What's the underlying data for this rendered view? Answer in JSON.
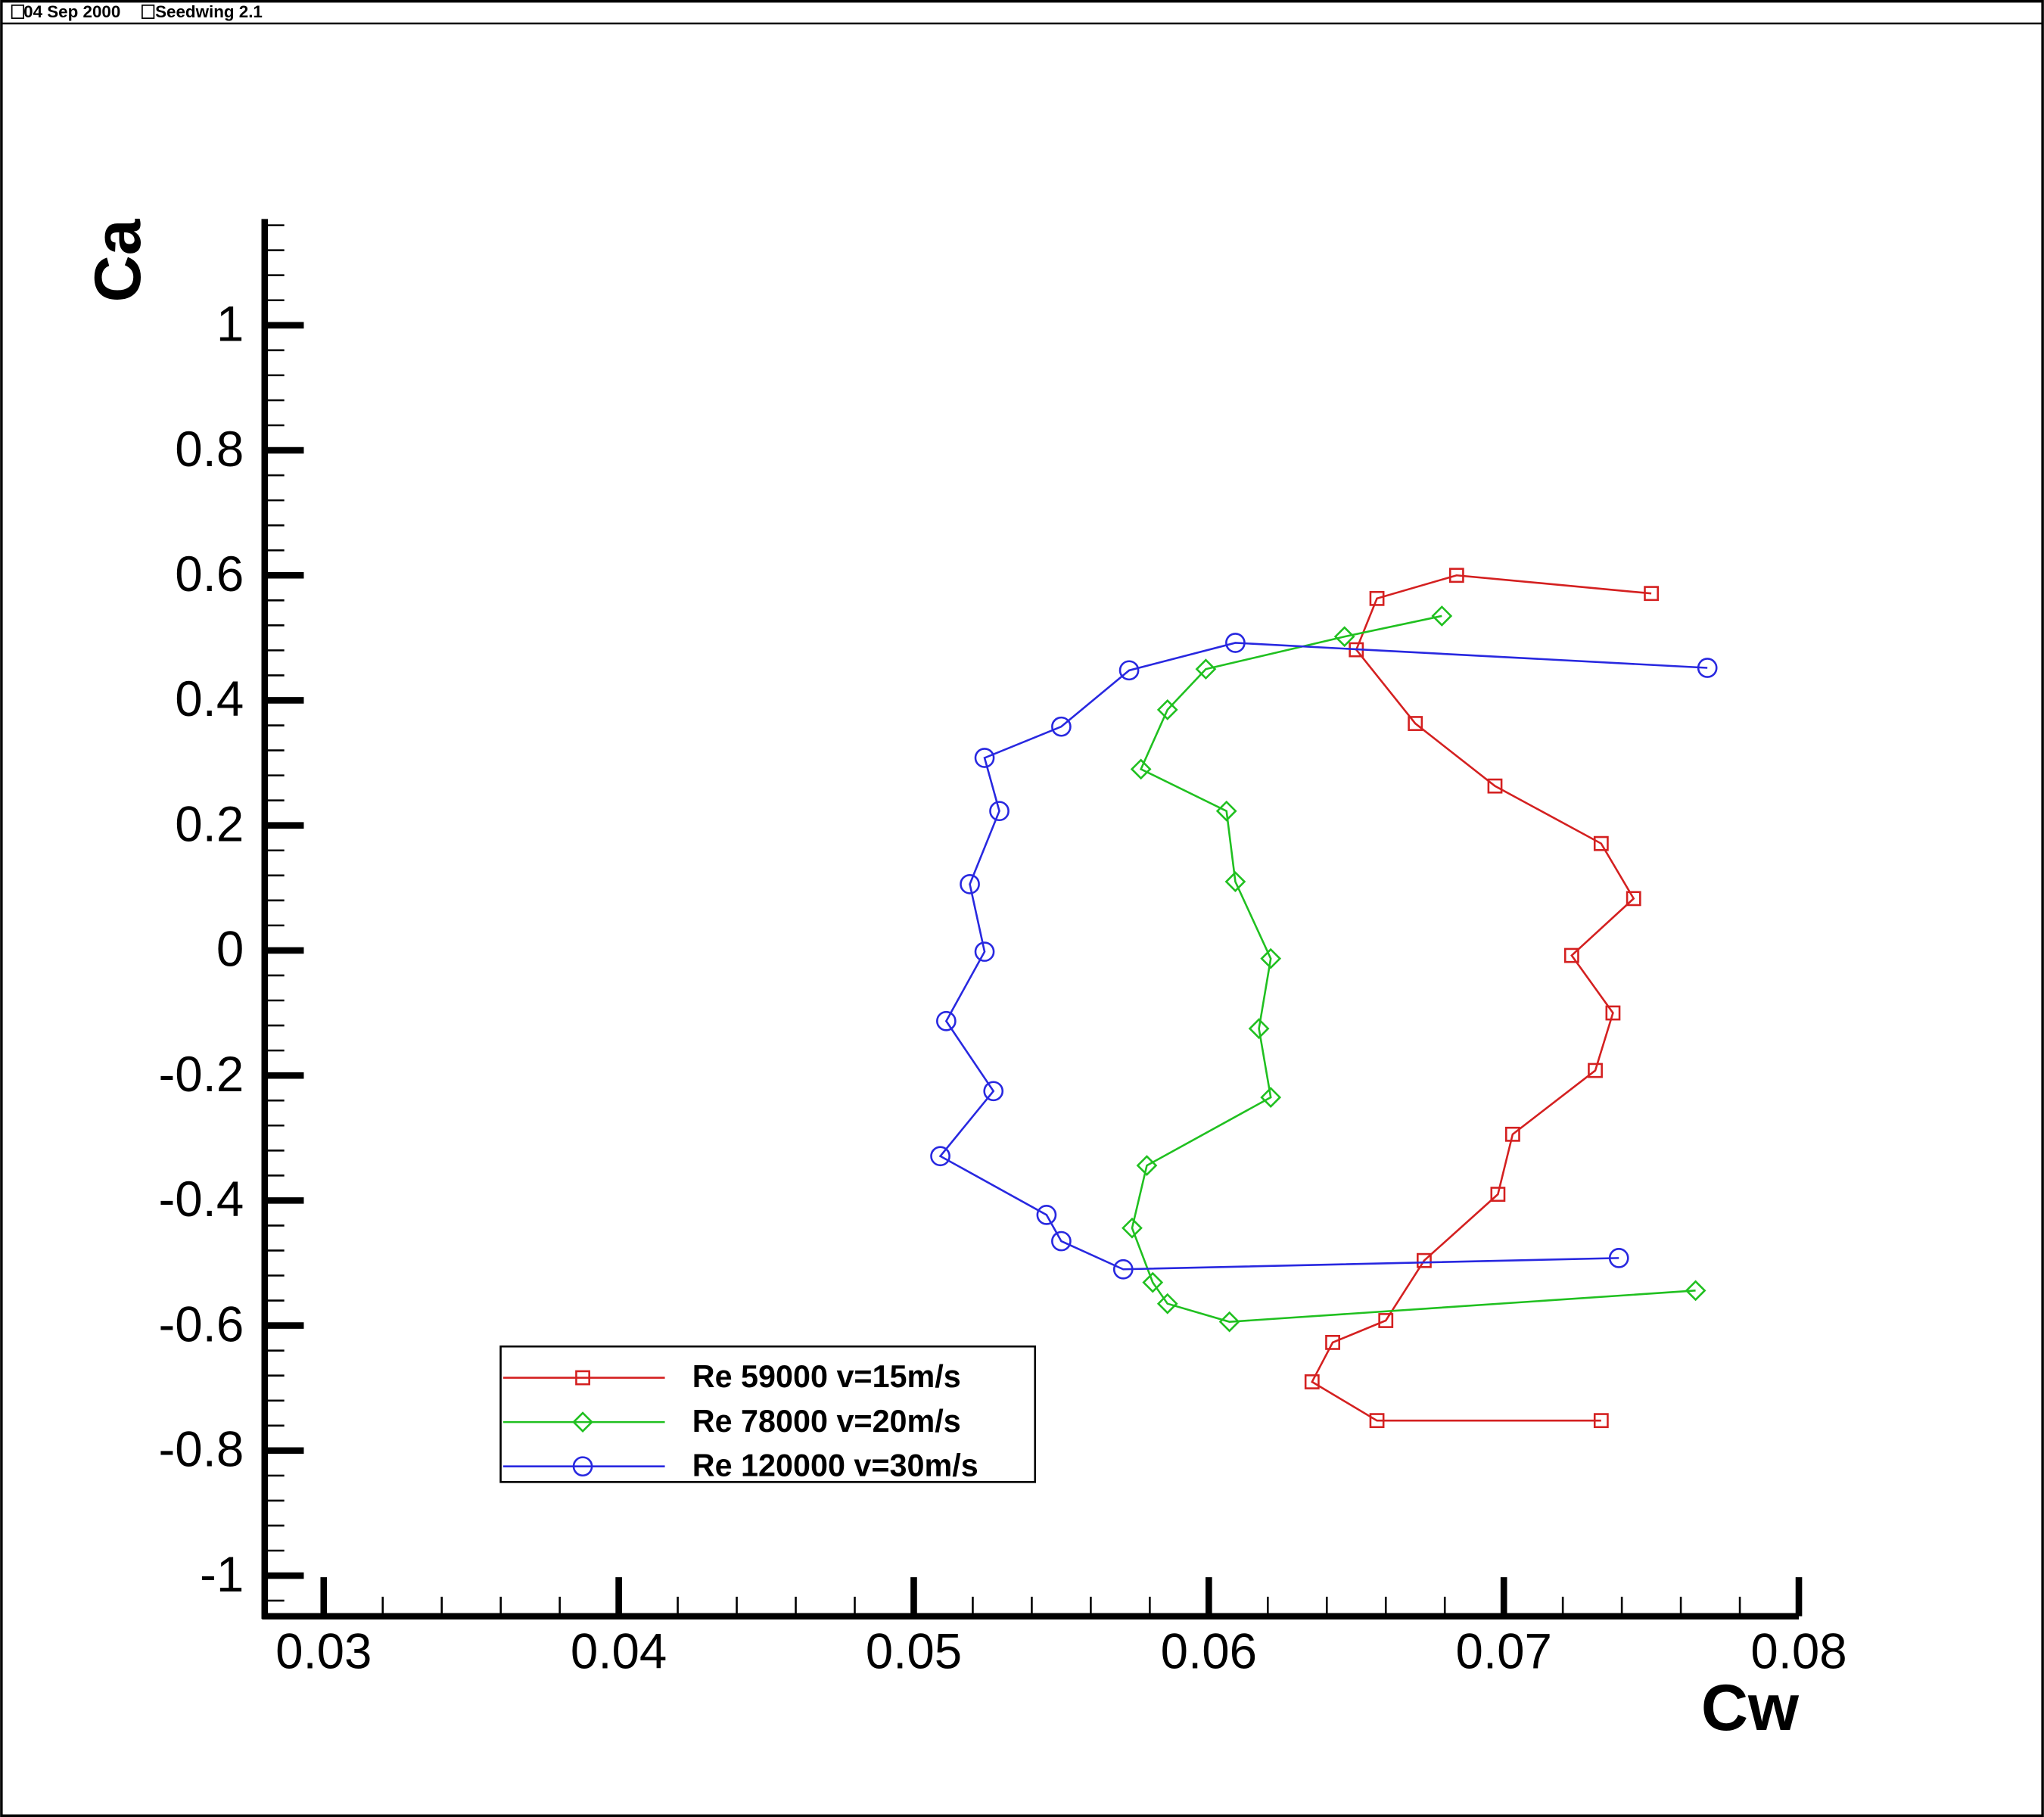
{
  "header": {
    "date": "04 Sep 2000",
    "program": "Seedwing 2.1"
  },
  "chart_data": {
    "type": "line",
    "x_label": "Cw",
    "y_label": "Ca",
    "xlim": [
      0.028,
      0.08
    ],
    "ylim": [
      -1.065,
      1.17
    ],
    "xticks": [
      0.03,
      0.04,
      0.05,
      0.06,
      0.07,
      0.08
    ],
    "yticks": [
      1,
      0.8,
      0.6,
      0.4,
      0.2,
      0,
      -0.2,
      -0.4,
      -0.6,
      -0.8,
      -1
    ],
    "legend": "bottom-left",
    "series": [
      {
        "name": "Re 59000 v=15m/s",
        "color": "#d42020",
        "marker": "square",
        "x": [
          0.075,
          0.0684,
          0.0657,
          0.065,
          0.067,
          0.0697,
          0.0733,
          0.0744,
          0.0723,
          0.0737,
          0.0731,
          0.0703,
          0.0698,
          0.0673,
          0.066,
          0.0642,
          0.0635,
          0.0657,
          0.0733
        ],
        "values": [
          0.571,
          0.6,
          0.563,
          0.481,
          0.363,
          0.263,
          0.171,
          0.083,
          -0.008,
          -0.1,
          -0.192,
          -0.294,
          -0.39,
          -0.496,
          -0.592,
          -0.627,
          -0.69,
          -0.752,
          -0.752
        ]
      },
      {
        "name": "Re 78000 v=20m/s",
        "color": "#20c020",
        "marker": "diamond",
        "x": [
          0.0679,
          0.0646,
          0.0599,
          0.0586,
          0.0577,
          0.0606,
          0.0609,
          0.0621,
          0.0617,
          0.0621,
          0.0579,
          0.0574,
          0.0581,
          0.0586,
          0.0607,
          0.0765
        ],
        "values": [
          0.535,
          0.502,
          0.45,
          0.385,
          0.29,
          0.223,
          0.11,
          -0.013,
          -0.125,
          -0.235,
          -0.344,
          -0.444,
          -0.531,
          -0.565,
          -0.594,
          -0.544
        ]
      },
      {
        "name": "Re 120000 v=30m/s",
        "color": "#2828e0",
        "marker": "circle",
        "x": [
          0.0769,
          0.0609,
          0.0573,
          0.055,
          0.0524,
          0.0529,
          0.0519,
          0.0524,
          0.0511,
          0.0527,
          0.0509,
          0.0545,
          0.055,
          0.0571,
          0.0739
        ],
        "values": [
          0.452,
          0.492,
          0.448,
          0.358,
          0.308,
          0.223,
          0.106,
          -0.002,
          -0.113,
          -0.225,
          -0.329,
          -0.423,
          -0.465,
          -0.51,
          -0.492
        ]
      }
    ]
  }
}
